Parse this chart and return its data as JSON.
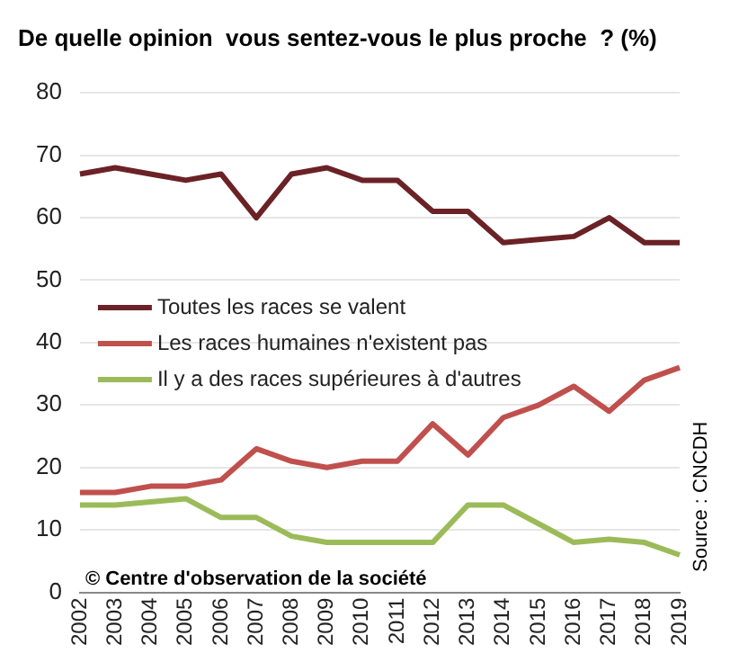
{
  "chart_data": {
    "type": "line",
    "title": "De quelle opinion  vous sentez-vous le plus proche  ? (%)",
    "categories": [
      "2002",
      "2003",
      "2004",
      "2005",
      "2006",
      "2007",
      "2008",
      "2009",
      "2010",
      "2011",
      "2012",
      "2013",
      "2014",
      "2015",
      "2016",
      "2017",
      "2018",
      "2019"
    ],
    "series": [
      {
        "name": "Toutes les races se valent",
        "color": "#6b2226",
        "values": [
          67,
          68,
          67,
          66,
          67,
          60,
          67,
          68,
          66,
          66,
          61,
          61,
          56,
          56.5,
          57,
          60,
          56,
          56
        ]
      },
      {
        "name": "Les races humaines n'existent pas",
        "color": "#c0504d",
        "values": [
          16,
          16,
          17,
          17,
          18,
          23,
          21,
          20,
          21,
          21,
          27,
          22,
          28,
          30,
          33,
          29,
          34,
          36
        ]
      },
      {
        "name": "Il y a des races supérieures à d'autres",
        "color": "#9bbb59",
        "values": [
          14,
          14,
          14.5,
          15,
          12,
          12,
          9,
          8,
          8,
          8,
          8,
          14,
          14,
          11,
          8,
          8.5,
          8,
          6
        ]
      }
    ],
    "ylim": [
      0,
      80
    ],
    "yticks": [
      0,
      10,
      20,
      30,
      40,
      50,
      60,
      70,
      80
    ],
    "grid": "y",
    "legend": "left",
    "marker": "none",
    "line_style": "solid",
    "annotations": [
      "© Centre d'observation de la société",
      "Source : CNCDH"
    ]
  }
}
